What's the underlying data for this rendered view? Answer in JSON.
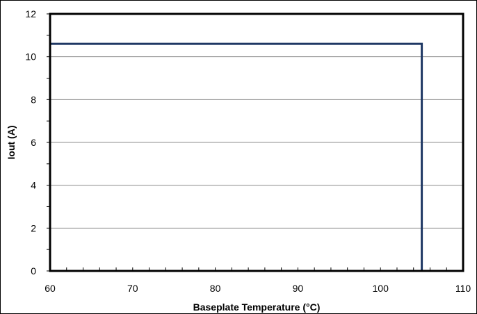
{
  "chart_data": {
    "type": "line",
    "title": "",
    "xlabel": "Baseplate Temperature (°C)",
    "ylabel": "Iout (A)",
    "xlim": [
      60,
      110
    ],
    "ylim": [
      0,
      12
    ],
    "x_ticks": [
      60,
      70,
      80,
      90,
      100,
      110
    ],
    "y_ticks": [
      0,
      2,
      4,
      6,
      8,
      10,
      12
    ],
    "grid": "horizontal",
    "legend": "none",
    "series": [
      {
        "x": [
          60,
          105,
          105
        ],
        "y": [
          10.6,
          10.6,
          0
        ],
        "color": "#1f3864"
      }
    ]
  }
}
